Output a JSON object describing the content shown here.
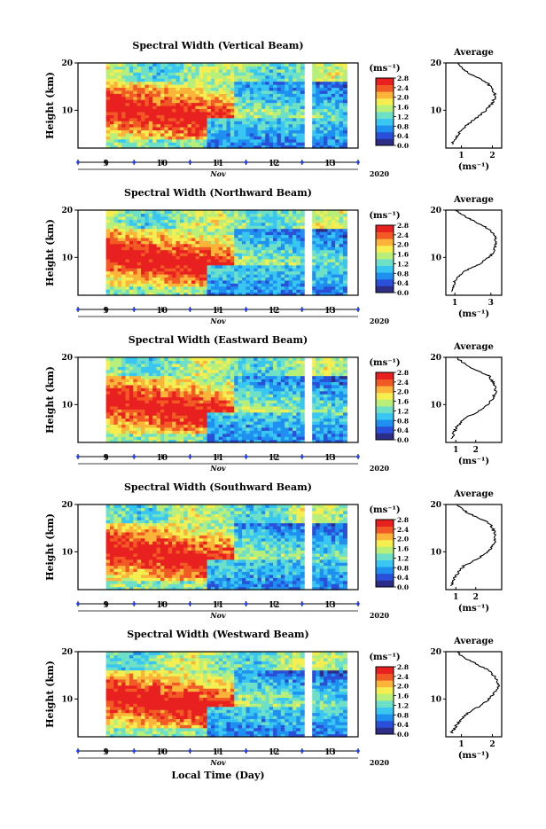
{
  "figure": {
    "xaxis_title": "Local Time (Day)",
    "month_label": "Nov",
    "year_label": "2020",
    "day_ticks": [
      "9",
      "10",
      "11",
      "12",
      "13"
    ],
    "height_ylabel": "Height (km)",
    "height_ticks": [
      "20",
      "10"
    ],
    "cbar_unit": "(ms⁻¹)",
    "cbar_ticks": [
      "0.0",
      "0.4",
      "0.8",
      "1.2",
      "1.6",
      "2.0",
      "2.4",
      "2.8"
    ],
    "avg_title": "Average",
    "avg_xlabel": "(ms⁻¹)",
    "colors": {
      "colormap": [
        "#2b2d86",
        "#2a4fd8",
        "#1f8ff0",
        "#39c6f0",
        "#6fe0c8",
        "#b7ef7a",
        "#f5ee50",
        "#fbb33a",
        "#f25a25",
        "#e82020"
      ],
      "gap": "#ffffff",
      "axis": "#000000",
      "tick_marker": "#1f3cff"
    }
  },
  "panels": [
    {
      "title": "Spectral Width (Vertical Beam)",
      "avg_xticks": [
        "1",
        "2"
      ]
    },
    {
      "title": "Spectral Width (Northward Beam)",
      "avg_xticks": [
        "1",
        "3"
      ]
    },
    {
      "title": "Spectral Width (Eastward Beam)",
      "avg_xticks": [
        "1",
        "2"
      ]
    },
    {
      "title": "Spectral Width (Southward Beam)",
      "avg_xticks": [
        "1",
        "2"
      ]
    },
    {
      "title": "Spectral Width (Westward Beam)",
      "avg_xticks": [
        "1",
        "2"
      ]
    }
  ],
  "chart_data": [
    {
      "type": "heatmap",
      "title": "Spectral Width (Vertical Beam)",
      "xlabel": "Local Time (Day)",
      "ylabel": "Height (km)",
      "xlim": [
        8.5,
        13.5
      ],
      "ylim": [
        2,
        20
      ],
      "colorbar_range": [
        0.0,
        2.8
      ],
      "colorbar_unit": "(ms⁻¹)",
      "data_gap": [
        [
          8.5,
          9.0
        ],
        [
          12.55,
          12.68
        ]
      ],
      "features": "high spectral width (~2.8) at 7-15 km on Nov 9-10 descending toward ~5-9 km by Nov 11-12; low (~0.4) below 8 km after Nov 11"
    },
    {
      "type": "heatmap",
      "title": "Spectral Width (Northward Beam)",
      "xlabel": "Local Time (Day)",
      "ylabel": "Height (km)",
      "xlim": [
        8.5,
        13.5
      ],
      "ylim": [
        2,
        20
      ],
      "colorbar_range": [
        0.0,
        2.8
      ],
      "colorbar_unit": "(ms⁻¹)",
      "data_gap": [
        [
          8.5,
          9.0
        ],
        [
          12.55,
          12.68
        ]
      ]
    },
    {
      "type": "heatmap",
      "title": "Spectral Width (Eastward Beam)",
      "xlabel": "Local Time (Day)",
      "ylabel": "Height (km)",
      "xlim": [
        8.5,
        13.5
      ],
      "ylim": [
        2,
        20
      ],
      "colorbar_range": [
        0.0,
        2.8
      ],
      "colorbar_unit": "(ms⁻¹)",
      "data_gap": [
        [
          8.5,
          9.0
        ],
        [
          12.55,
          12.68
        ]
      ]
    },
    {
      "type": "heatmap",
      "title": "Spectral Width (Southward Beam)",
      "xlabel": "Local Time (Day)",
      "ylabel": "Height (km)",
      "xlim": [
        8.5,
        13.5
      ],
      "ylim": [
        2,
        20
      ],
      "colorbar_range": [
        0.0,
        2.8
      ],
      "colorbar_unit": "(ms⁻¹)",
      "data_gap": [
        [
          8.5,
          9.0
        ],
        [
          12.55,
          12.68
        ]
      ]
    },
    {
      "type": "heatmap",
      "title": "Spectral Width (Westward Beam)",
      "xlabel": "Local Time (Day)",
      "ylabel": "Height (km)",
      "xlim": [
        8.5,
        13.5
      ],
      "ylim": [
        2,
        20
      ],
      "colorbar_range": [
        0.0,
        2.8
      ],
      "colorbar_unit": "(ms⁻¹)",
      "data_gap": [
        [
          8.5,
          9.0
        ],
        [
          12.55,
          12.68
        ]
      ]
    },
    {
      "type": "line",
      "title": "Average",
      "panel": "Vertical Beam",
      "xlabel": "(ms⁻¹)",
      "ylabel": "Height (km)",
      "xlim": [
        0.5,
        2.3
      ],
      "ylim": [
        2,
        20
      ],
      "x": [
        0.7,
        0.9,
        1.2,
        1.5,
        1.8,
        2.0,
        2.1,
        2.0,
        1.8,
        1.5,
        1.2,
        1.0,
        0.9
      ],
      "y": [
        3,
        5,
        7,
        8.5,
        10,
        11.5,
        13,
        14.5,
        16,
        17,
        18,
        19,
        19.8
      ]
    },
    {
      "type": "line",
      "title": "Average",
      "panel": "Northward Beam",
      "xlabel": "(ms⁻¹)",
      "ylabel": "Height (km)",
      "xlim": [
        0.5,
        3.6
      ],
      "ylim": [
        2,
        20
      ],
      "x": [
        0.8,
        1.0,
        1.5,
        2.3,
        2.9,
        3.2,
        3.3,
        3.2,
        2.9,
        2.4,
        1.9,
        1.4,
        1.1
      ],
      "y": [
        3,
        5,
        7,
        8.5,
        10,
        11.5,
        13,
        14.5,
        16,
        17,
        18,
        19,
        19.8
      ]
    },
    {
      "type": "line",
      "title": "Average",
      "panel": "Eastward Beam",
      "xlabel": "(ms⁻¹)",
      "ylabel": "Height (km)",
      "xlim": [
        0.5,
        3.3
      ],
      "ylim": [
        2,
        20
      ],
      "x": [
        0.8,
        1.0,
        1.4,
        2.1,
        2.6,
        2.9,
        3.0,
        2.9,
        2.7,
        2.2,
        1.7,
        1.3,
        1.1
      ],
      "y": [
        3,
        5,
        7,
        8.5,
        10,
        11.5,
        13,
        14.5,
        16,
        17,
        18,
        19,
        19.8
      ]
    },
    {
      "type": "line",
      "title": "Average",
      "panel": "Southward Beam",
      "xlabel": "(ms⁻¹)",
      "ylabel": "Height (km)",
      "xlim": [
        0.5,
        3.3
      ],
      "ylim": [
        2,
        20
      ],
      "x": [
        0.8,
        1.0,
        1.4,
        2.1,
        2.6,
        2.9,
        3.0,
        2.9,
        2.7,
        2.2,
        1.7,
        1.3,
        1.1
      ],
      "y": [
        3,
        5,
        7,
        8.5,
        10,
        11.5,
        13,
        14.5,
        16,
        17,
        18,
        19,
        19.8
      ]
    },
    {
      "type": "line",
      "title": "Average",
      "panel": "Westward Beam",
      "xlabel": "(ms⁻¹)",
      "ylabel": "Height (km)",
      "xlim": [
        0.5,
        2.3
      ],
      "ylim": [
        2,
        20
      ],
      "x": [
        0.7,
        0.9,
        1.2,
        1.6,
        1.9,
        2.1,
        2.2,
        2.1,
        1.9,
        1.6,
        1.3,
        1.0,
        0.9
      ],
      "y": [
        3,
        5,
        7,
        8.5,
        10,
        11.5,
        13,
        14.5,
        16,
        17,
        18,
        19,
        19.8
      ]
    }
  ]
}
